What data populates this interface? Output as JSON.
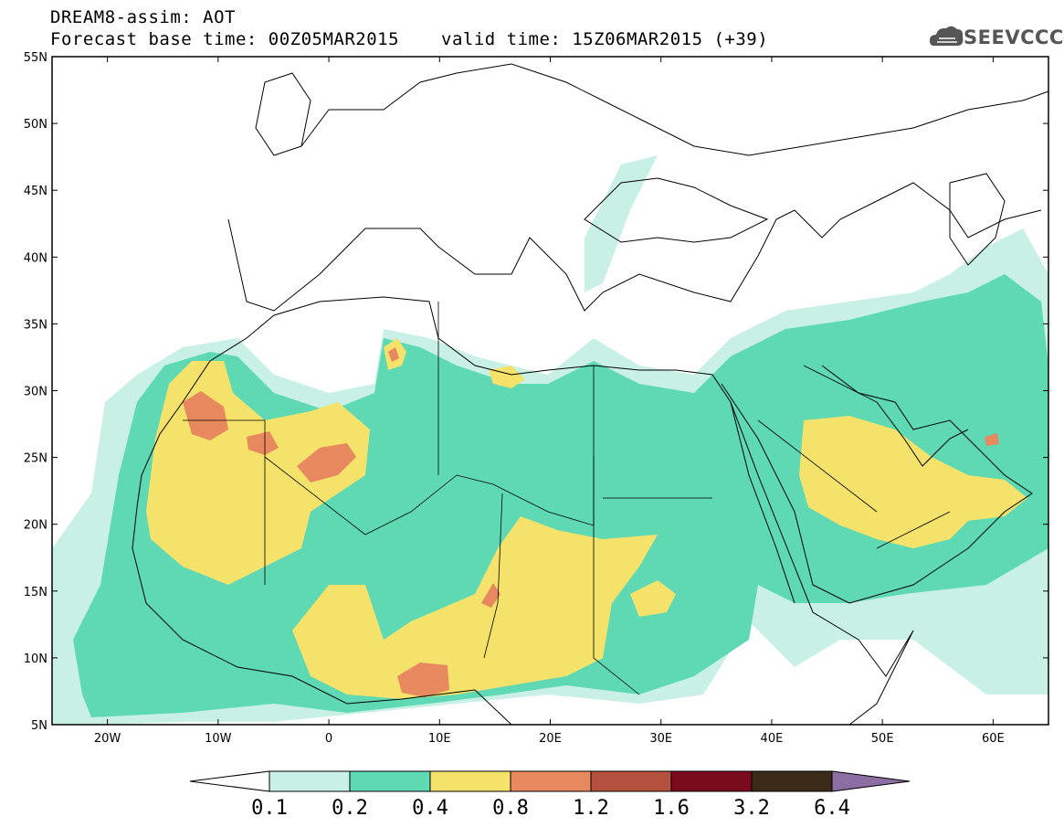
{
  "header": {
    "line1": "DREAM8-assim: AOT",
    "line2": "Forecast base time: 00Z05MAR2015",
    "valid": "valid time: 15Z06MAR2015 (+39)"
  },
  "logo": {
    "text": "SEEVCCC",
    "icon": "cloud-icon"
  },
  "map": {
    "lon_range": [
      -25,
      65
    ],
    "lat_range": [
      5,
      55
    ],
    "lat_ticks": [
      "5N",
      "10N",
      "15N",
      "20N",
      "25N",
      "30N",
      "35N",
      "40N",
      "45N",
      "50N",
      "55N"
    ],
    "lon_ticks": [
      "20W",
      "10W",
      "0",
      "10E",
      "20E",
      "30E",
      "40E",
      "50E",
      "60E"
    ]
  },
  "colorbar": {
    "levels": [
      "0.1",
      "0.2",
      "0.4",
      "0.8",
      "1.2",
      "1.6",
      "3.2",
      "6.4"
    ],
    "colors": [
      "#ffffff",
      "#c8f0e6",
      "#5ed9b4",
      "#f5e26a",
      "#e8885e",
      "#b3503e",
      "#7a0a1e",
      "#3b2a16",
      "#8c6ea5"
    ]
  }
}
